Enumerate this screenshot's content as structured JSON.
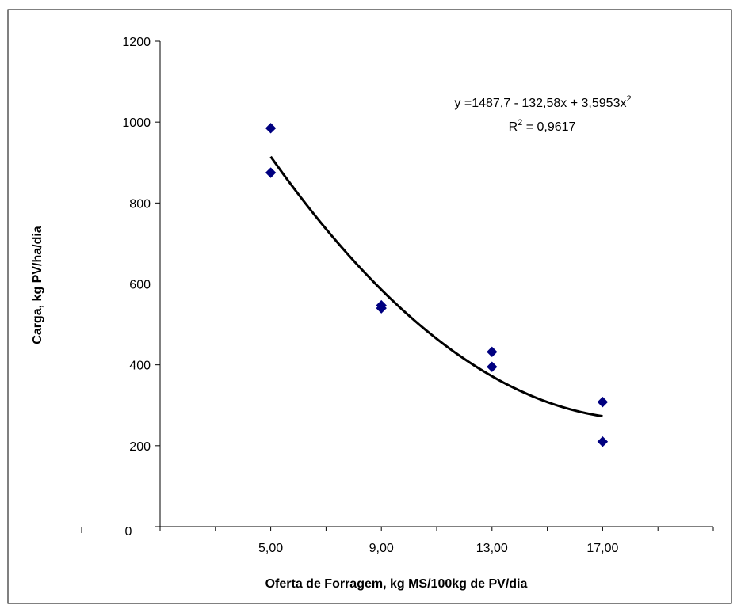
{
  "chart_data": {
    "type": "scatter",
    "title": "",
    "xlabel": "Oferta de Forragem, kg MS/100kg de PV/dia",
    "ylabel": "Carga, kg PV/ha/dia",
    "xlim": [
      1,
      21
    ],
    "ylim": [
      0,
      1200
    ],
    "x_ticks": [
      5,
      9,
      13,
      17
    ],
    "x_tick_labels": [
      "5,00",
      "9,00",
      "13,00",
      "17,00"
    ],
    "y_ticks": [
      0,
      200,
      400,
      600,
      800,
      1000,
      1200
    ],
    "y_tick_labels": [
      "0",
      "200",
      "400",
      "600",
      "800",
      "1000",
      "1200"
    ],
    "grid": false,
    "legend": "none",
    "series": [
      {
        "color": "#000080",
        "marker": "diamond",
        "x": [
          5,
          5,
          9,
          9,
          13,
          13,
          17,
          17
        ],
        "y": [
          985,
          875,
          547,
          540,
          432,
          395,
          308,
          210
        ]
      }
    ],
    "trendline": {
      "type": "polynomial",
      "order": 2,
      "coefficients": [
        1487.7,
        -132.58,
        3.5953
      ],
      "x_range": [
        5,
        17
      ],
      "color": "#000000"
    },
    "annotations": {
      "equation_prefix": "y =1487,7 - 132,58x + 3,5953x",
      "equation_sup": "2",
      "r2_prefix": "R",
      "r2_sup": "2",
      "r2_suffix": " = 0,9617"
    }
  }
}
